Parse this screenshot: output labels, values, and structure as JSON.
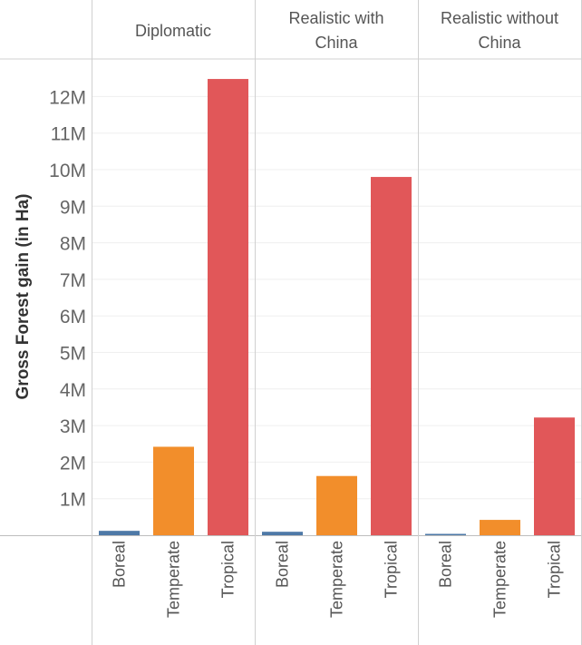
{
  "chart_data": {
    "type": "bar",
    "ylabel": "Gross Forest gain (in Ha)",
    "ylim": [
      0,
      13000000
    ],
    "yticks": [
      {
        "value": 1000000,
        "label": "1M"
      },
      {
        "value": 2000000,
        "label": "2M"
      },
      {
        "value": 3000000,
        "label": "3M"
      },
      {
        "value": 4000000,
        "label": "4M"
      },
      {
        "value": 5000000,
        "label": "5M"
      },
      {
        "value": 6000000,
        "label": "6M"
      },
      {
        "value": 7000000,
        "label": "7M"
      },
      {
        "value": 8000000,
        "label": "8M"
      },
      {
        "value": 9000000,
        "label": "9M"
      },
      {
        "value": 10000000,
        "label": "10M"
      },
      {
        "value": 11000000,
        "label": "11M"
      },
      {
        "value": 12000000,
        "label": "12M"
      }
    ],
    "categories": [
      "Boreal",
      "Temperate",
      "Tropical"
    ],
    "colors": {
      "Boreal": "#4e79a7",
      "Temperate": "#f28e2b",
      "Tropical": "#e15759"
    },
    "panels": [
      {
        "title_lines": [
          "Diplomatic"
        ],
        "values": [
          120000,
          2420000,
          12480000
        ]
      },
      {
        "title_lines": [
          "Realistic with",
          "China"
        ],
        "values": [
          95000,
          1620000,
          9800000
        ]
      },
      {
        "title_lines": [
          "Realistic without",
          "China"
        ],
        "values": [
          25000,
          420000,
          3220000
        ]
      }
    ],
    "grid": true
  }
}
